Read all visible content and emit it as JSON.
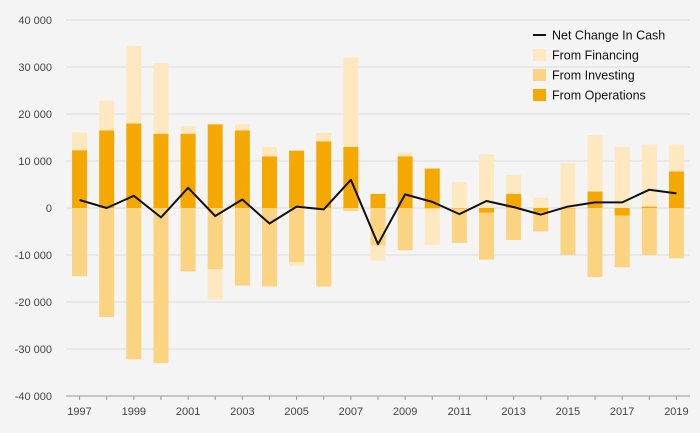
{
  "chart_data": {
    "type": "bar",
    "stacked": true,
    "title": "",
    "xlabel": "",
    "ylabel": "",
    "ylim": [
      -40000,
      40000
    ],
    "y_ticks": [
      40000,
      30000,
      20000,
      10000,
      0,
      -10000,
      -20000,
      -30000,
      -40000
    ],
    "y_tick_labels": [
      "40 000",
      "30 000",
      "20 000",
      "10 000",
      "0",
      "-10 000",
      "-20 000",
      "-30 000",
      "-40 000"
    ],
    "x": [
      1997,
      1998,
      1999,
      2000,
      2001,
      2002,
      2003,
      2004,
      2005,
      2006,
      2007,
      2008,
      2009,
      2010,
      2011,
      2012,
      2013,
      2014,
      2015,
      2016,
      2017,
      2018,
      2019
    ],
    "x_tick_labels": [
      "1997",
      "1999",
      "2001",
      "2003",
      "2005",
      "2007",
      "2009",
      "2011",
      "2013",
      "2015",
      "2017",
      "2019"
    ],
    "grid": "horizontal",
    "legend_position": "top-right",
    "series": [
      {
        "name": "From Operations",
        "kind": "bar",
        "color": "#f5a800",
        "values": [
          12300,
          16500,
          18000,
          15800,
          15800,
          17800,
          16500,
          11000,
          12200,
          14200,
          13000,
          3000,
          11000,
          8400,
          -100,
          -1000,
          3000,
          -1000,
          -100,
          3500,
          -1600,
          300,
          7800
        ]
      },
      {
        "name": "From Investing",
        "kind": "bar",
        "color": "#fad480",
        "values": [
          -14500,
          -23200,
          -32200,
          -33000,
          -13500,
          -13000,
          -16500,
          -16700,
          -11500,
          -16700,
          -600,
          -8000,
          -9000,
          -300,
          -7300,
          -10000,
          -6800,
          -4000,
          -9800,
          -14700,
          -11000,
          -10000,
          -10700
        ]
      },
      {
        "name": "From Financing",
        "kind": "bar",
        "color": "#fde8bf",
        "values": [
          3800,
          6300,
          16500,
          15000,
          1600,
          -6500,
          1300,
          2000,
          -800,
          1800,
          19000,
          -3200,
          800,
          -7600,
          5500,
          11400,
          4000,
          2200,
          9600,
          12000,
          13000,
          13200,
          5700
        ]
      },
      {
        "name": "Net Change In Cash",
        "kind": "line",
        "color": "#111111",
        "values": [
          1700,
          0,
          2600,
          -2000,
          4300,
          -1700,
          1800,
          -3300,
          300,
          -300,
          6000,
          -7700,
          2900,
          1300,
          -1300,
          1500,
          200,
          -1400,
          300,
          1200,
          1200,
          3900,
          3100
        ]
      }
    ],
    "legend": [
      "Net Change In Cash",
      "From Financing",
      "From Investing",
      "From Operations"
    ]
  }
}
